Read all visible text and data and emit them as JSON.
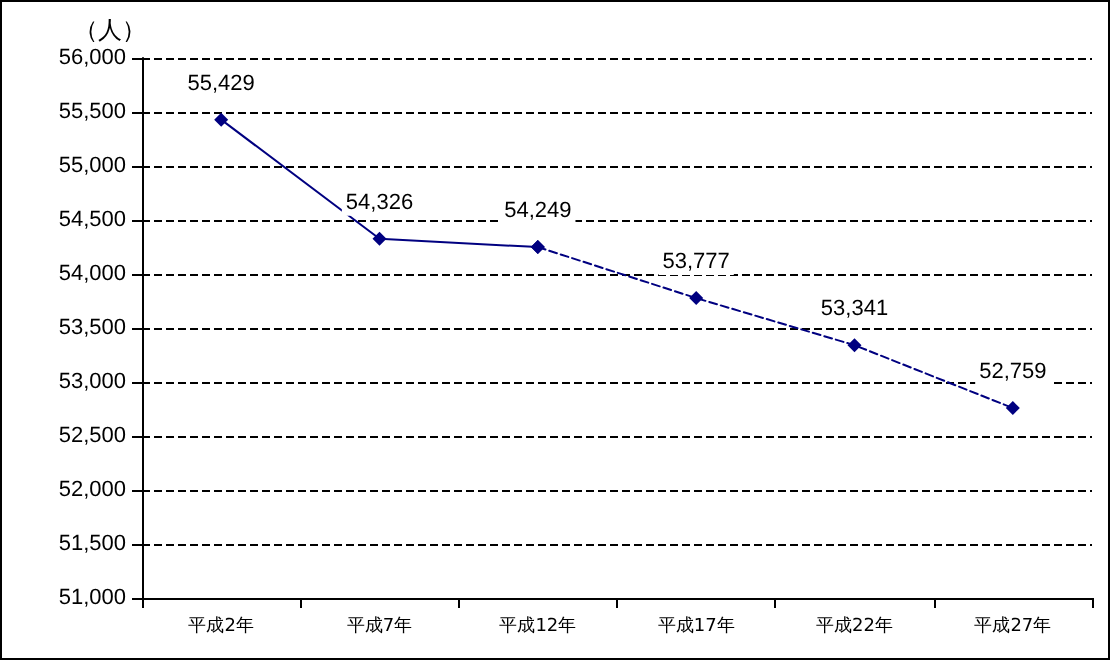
{
  "chart_data": {
    "type": "line",
    "ylabel": "（人）",
    "categories": [
      "平成2年",
      "平成7年",
      "平成12年",
      "平成17年",
      "平成22年",
      "平成27年"
    ],
    "series": [
      {
        "color": "#000080",
        "line_style": "solid",
        "values": [
          55429,
          54326,
          54249,
          null,
          null,
          null
        ],
        "value_labels": [
          "55,429",
          "54,326",
          "54,249",
          null,
          null,
          null
        ]
      },
      {
        "color": "#000080",
        "line_style": "dashed",
        "values": [
          null,
          null,
          54249,
          53777,
          53341,
          52759
        ],
        "value_labels": [
          null,
          null,
          null,
          "53,777",
          "53,341",
          "52,759"
        ]
      }
    ],
    "ylim": [
      51000,
      56000
    ],
    "yticks": [
      {
        "value": 51000,
        "label": "51,000"
      },
      {
        "value": 51500,
        "label": "51,500"
      },
      {
        "value": 52000,
        "label": "52,000"
      },
      {
        "value": 52500,
        "label": "52,500"
      },
      {
        "value": 53000,
        "label": "53,000"
      },
      {
        "value": 53500,
        "label": "53,500"
      },
      {
        "value": 54000,
        "label": "54,000"
      },
      {
        "value": 54500,
        "label": "54,500"
      },
      {
        "value": 55000,
        "label": "55,000"
      },
      {
        "value": 55500,
        "label": "55,500"
      },
      {
        "value": 56000,
        "label": "56,000"
      }
    ],
    "grid": "y",
    "marker": "diamond"
  }
}
